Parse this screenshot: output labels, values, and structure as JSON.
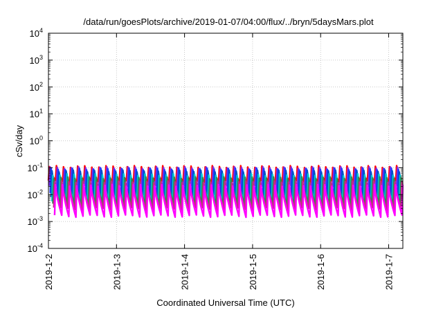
{
  "chart_data": {
    "type": "line",
    "title": "/data/run/goesPlots/archive/2019-01-07/04:00/flux/../bryn/5daysMars.plot",
    "xlabel": "Coordinated Universal Time (UTC)",
    "ylabel": "cSv/day",
    "yscale": "log",
    "ylim": [
      0.0001,
      10000
    ],
    "xlim": [
      "2019-01-02",
      "2019-01-07 05:00"
    ],
    "x_ticks": [
      "2019-1-2",
      "2019-1-3",
      "2019-1-4",
      "2019-1-5",
      "2019-1-6",
      "2019-1-7"
    ],
    "y_ticks": [
      {
        "base": "10",
        "exp": "-4"
      },
      {
        "base": "10",
        "exp": "-3"
      },
      {
        "base": "10",
        "exp": "-2"
      },
      {
        "base": "10",
        "exp": "-1"
      },
      {
        "base": "10",
        "exp": "0"
      },
      {
        "base": "10",
        "exp": "1"
      },
      {
        "base": "10",
        "exp": "2"
      },
      {
        "base": "10",
        "exp": "3"
      },
      {
        "base": "10",
        "exp": "4"
      }
    ],
    "grid": true,
    "legend": "none",
    "pattern": {
      "cycles_per_day": 9.6,
      "shape": "sawtooth",
      "description_values": "each series rises sharply then decays through each cycle"
    },
    "series": [
      {
        "color": "#ff0000",
        "peak": 0.11,
        "trough": 0.03
      },
      {
        "color": "#8a2be2",
        "peak": 0.1,
        "trough": 0.02
      },
      {
        "color": "#1e3cff",
        "peak": 0.09,
        "trough": 0.012
      },
      {
        "color": "#0050c8",
        "peak": 0.075,
        "trough": 0.009
      },
      {
        "color": "#00c8d2",
        "peak": 0.055,
        "trough": 0.006
      },
      {
        "color": "#2e8b57",
        "peak": 0.042,
        "trough": 0.0045
      },
      {
        "color": "#c03080",
        "peak": 0.03,
        "trough": 0.003
      },
      {
        "color": "#ff00ff",
        "peak": 0.022,
        "trough": 0.0016
      }
    ]
  }
}
